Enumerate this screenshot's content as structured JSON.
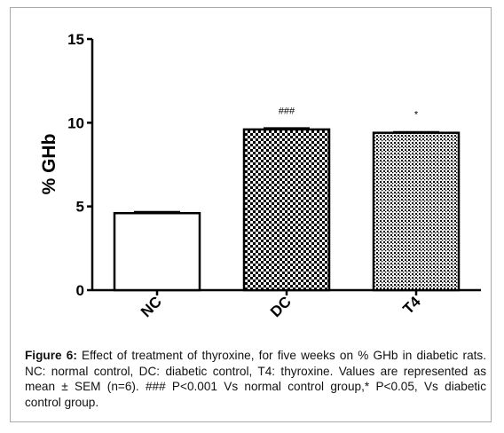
{
  "chart_data": {
    "type": "bar",
    "ylabel": "% GHb",
    "xlabel": "",
    "ylim": [
      0,
      15
    ],
    "yticks": [
      "0",
      "5",
      "10",
      "15"
    ],
    "categories": [
      "NC",
      "DC",
      "T4"
    ],
    "values": [
      4.6,
      9.6,
      9.4
    ],
    "sem": [
      0.08,
      0.08,
      0.05
    ],
    "significance": [
      "",
      "###",
      "*"
    ],
    "fills": [
      "white",
      "checker",
      "dots"
    ]
  },
  "caption": {
    "label": "Figure 6:",
    "text": " Effect of treatment of thyroxine, for five weeks on % GHb in diabetic rats. NC: normal control, DC: diabetic control, T4: thyroxine. Values are represented as mean ± SEM (n=6). ### P<0.001 Vs normal control group,* P<0.05, Vs diabetic control group."
  },
  "colors": {
    "axis": "#000000",
    "bar_stroke": "#000000",
    "bar_fill": "#ffffff"
  }
}
